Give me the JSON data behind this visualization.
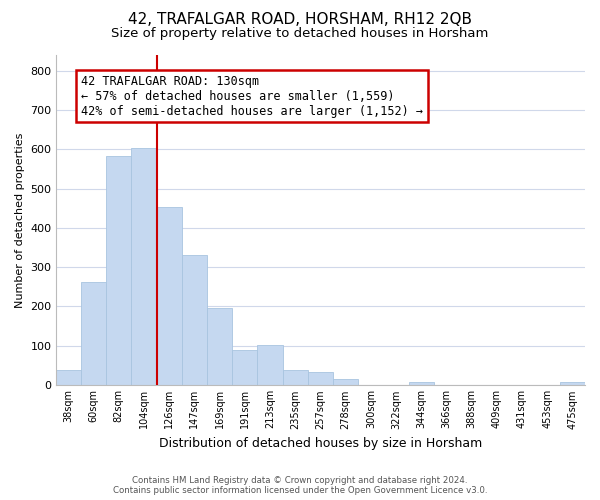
{
  "title": "42, TRAFALGAR ROAD, HORSHAM, RH12 2QB",
  "subtitle": "Size of property relative to detached houses in Horsham",
  "xlabel": "Distribution of detached houses by size in Horsham",
  "ylabel": "Number of detached properties",
  "categories": [
    "38sqm",
    "60sqm",
    "82sqm",
    "104sqm",
    "126sqm",
    "147sqm",
    "169sqm",
    "191sqm",
    "213sqm",
    "235sqm",
    "257sqm",
    "278sqm",
    "300sqm",
    "322sqm",
    "344sqm",
    "366sqm",
    "388sqm",
    "409sqm",
    "431sqm",
    "453sqm",
    "475sqm"
  ],
  "values": [
    38,
    263,
    582,
    602,
    453,
    330,
    196,
    90,
    101,
    38,
    32,
    15,
    0,
    0,
    8,
    0,
    0,
    0,
    0,
    0,
    8
  ],
  "bar_color": "#c5d8f0",
  "bar_edgecolor": "#a8c4e0",
  "marker_label": "42 TRAFALGAR ROAD: 130sqm",
  "annotation_line1": "← 57% of detached houses are smaller (1,559)",
  "annotation_line2": "42% of semi-detached houses are larger (1,152) →",
  "box_color": "white",
  "box_edge_color": "#cc0000",
  "vline_color": "#cc0000",
  "vline_x_index": 3.5,
  "ylim": [
    0,
    840
  ],
  "yticks": [
    0,
    100,
    200,
    300,
    400,
    500,
    600,
    700,
    800
  ],
  "footer_line1": "Contains HM Land Registry data © Crown copyright and database right 2024.",
  "footer_line2": "Contains public sector information licensed under the Open Government Licence v3.0.",
  "background_color": "#ffffff",
  "grid_color": "#d0d8ea",
  "title_fontsize": 11,
  "subtitle_fontsize": 9.5,
  "annotation_fontsize": 8.5,
  "xlabel_fontsize": 9,
  "ylabel_fontsize": 8,
  "tick_fontsize": 8,
  "xtick_fontsize": 7
}
